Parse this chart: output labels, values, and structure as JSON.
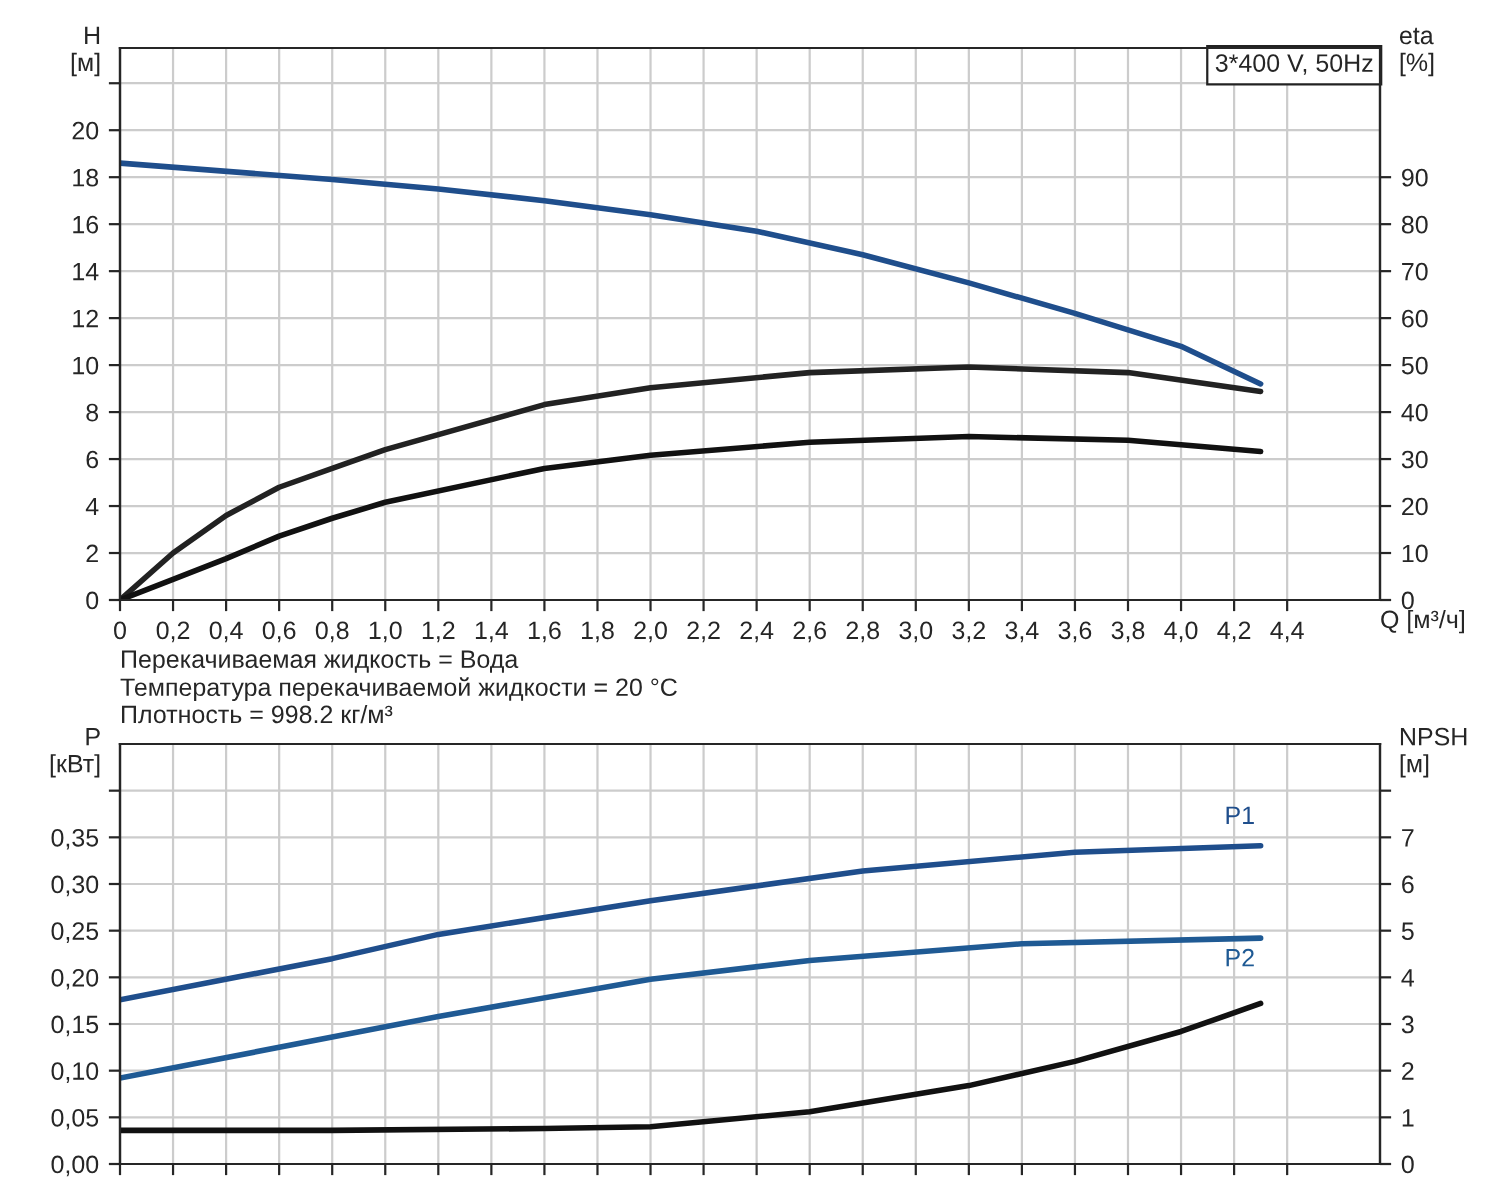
{
  "chart_data": [
    {
      "type": "line",
      "xlabel": "Q [м³/ч]",
      "ylabel": "H\n[м]",
      "y2label": "eta\n[%]",
      "annotations": [
        "3*400 V, 50Hz",
        "Перекачиваемая жидкость = Вода",
        "Температура перекачиваемой жидкости = 20 °C",
        "Плотность = 998.2 кг/м³"
      ],
      "series": [
        {
          "color": "#1f4e8c",
          "x": [
            0,
            0.8,
            1.2,
            1.6,
            2.0,
            2.4,
            2.8,
            3.2,
            3.6,
            4.0,
            4.3
          ],
          "values": [
            18.6,
            17.9,
            17.5,
            17.0,
            16.4,
            15.7,
            14.7,
            13.5,
            12.2,
            10.8,
            9.2
          ]
        },
        {
          "color": "#222222",
          "axis": "y2",
          "x": [
            0,
            0.2,
            0.4,
            0.6,
            0.8,
            1.0,
            1.6,
            2.0,
            2.6,
            3.2,
            3.8,
            4.3
          ],
          "values": [
            0,
            10,
            18,
            24,
            28,
            32,
            41.6,
            45.2,
            48.4,
            49.6,
            48.4,
            44.4
          ]
        },
        {
          "color": "#111111",
          "axis": "y2",
          "x": [
            0,
            0.2,
            0.4,
            0.6,
            0.8,
            1.0,
            1.6,
            2.0,
            2.6,
            3.2,
            3.8,
            4.3
          ],
          "values": [
            0,
            4.4,
            8.8,
            13.6,
            17.4,
            20.8,
            28,
            30.8,
            33.6,
            34.8,
            34,
            31.6
          ]
        }
      ],
      "xlim": [
        0,
        4.75
      ],
      "xticks": [
        0,
        {
          "value": 0.2,
          "label": "0,2"
        },
        {
          "value": 0.4,
          "label": "0,4"
        },
        {
          "value": 0.6,
          "label": "0,6"
        },
        {
          "value": 0.8,
          "label": "0,8"
        },
        {
          "value": 1.0,
          "label": "1,0"
        },
        {
          "value": 1.2,
          "label": "1,2"
        },
        {
          "value": 1.4,
          "label": "1,4"
        },
        {
          "value": 1.6,
          "label": "1,6"
        },
        {
          "value": 1.8,
          "label": "1,8"
        },
        {
          "value": 2.0,
          "label": "2,0"
        },
        {
          "value": 2.2,
          "label": "2,2"
        },
        {
          "value": 2.4,
          "label": "2,4"
        },
        {
          "value": 2.6,
          "label": "2,6"
        },
        {
          "value": 2.8,
          "label": "2,8"
        },
        {
          "value": 3.0,
          "label": "3,0"
        },
        {
          "value": 3.2,
          "label": "3,2"
        },
        {
          "value": 3.4,
          "label": "3,4"
        },
        {
          "value": 3.6,
          "label": "3,6"
        },
        {
          "value": 3.8,
          "label": "3,8"
        },
        {
          "value": 4.0,
          "label": "4,0"
        },
        {
          "value": 4.2,
          "label": "4,2"
        },
        {
          "value": 4.4,
          "label": "4,4"
        }
      ],
      "ylim": [
        0,
        23.5
      ],
      "yticks": [
        0,
        2,
        4,
        6,
        8,
        10,
        12,
        14,
        16,
        18,
        20,
        {
          "value": 22,
          "label": null
        }
      ],
      "y2lim": [
        0,
        117.5
      ],
      "y2ticks": [
        0,
        10,
        20,
        30,
        40,
        50,
        60,
        70,
        80,
        90
      ],
      "grid": true,
      "line_style": "solid",
      "marker": "none"
    },
    {
      "type": "line",
      "ylabel": "P\n[кВт]",
      "y2label": "NPSH\n[м]",
      "series": [
        {
          "name": "P1",
          "color": "#1f4e8c",
          "x": [
            0,
            0.8,
            1.2,
            2.0,
            2.8,
            3.6,
            4.3
          ],
          "values": [
            0.176,
            0.22,
            0.246,
            0.282,
            0.314,
            0.334,
            0.341
          ]
        },
        {
          "name": "P2",
          "color": "#1f5a94",
          "x": [
            0,
            0.8,
            1.2,
            2.0,
            2.6,
            3.4,
            4.3
          ],
          "values": [
            0.092,
            0.136,
            0.158,
            0.198,
            0.218,
            0.236,
            0.242
          ]
        },
        {
          "color": "#111111",
          "axis": "y2",
          "x": [
            0,
            0.8,
            1.6,
            2.0,
            2.6,
            3.2,
            3.6,
            4.0,
            4.3
          ],
          "values": [
            0.72,
            0.72,
            0.76,
            0.8,
            1.12,
            1.68,
            2.2,
            2.84,
            3.44
          ]
        }
      ],
      "xlim": [
        0,
        4.75
      ],
      "tick_labels": "y",
      "xticks": [
        0,
        0.2,
        0.4,
        0.6,
        0.8,
        1.0,
        1.2,
        1.4,
        1.6,
        1.8,
        2.0,
        2.2,
        2.4,
        2.6,
        2.8,
        3.0,
        3.2,
        3.4,
        3.6,
        3.8,
        4.0,
        4.2,
        4.4
      ],
      "ylim": [
        0,
        0.45
      ],
      "yticks": [
        {
          "value": 0,
          "label": "0,00"
        },
        {
          "value": 0.05,
          "label": "0,05"
        },
        {
          "value": 0.1,
          "label": "0,10"
        },
        {
          "value": 0.15,
          "label": "0,15"
        },
        {
          "value": 0.2,
          "label": "0,20"
        },
        {
          "value": 0.25,
          "label": "0,25"
        },
        {
          "value": 0.3,
          "label": "0,30"
        },
        {
          "value": 0.35,
          "label": "0,35"
        },
        {
          "value": 0.4,
          "label": null
        }
      ],
      "y2lim": [
        0,
        9
      ],
      "y2ticks": [
        0,
        1,
        2,
        3,
        4,
        5,
        6,
        7,
        {
          "value": 8,
          "label": null
        }
      ],
      "grid": true,
      "line_style": "solid",
      "marker": "none"
    }
  ]
}
